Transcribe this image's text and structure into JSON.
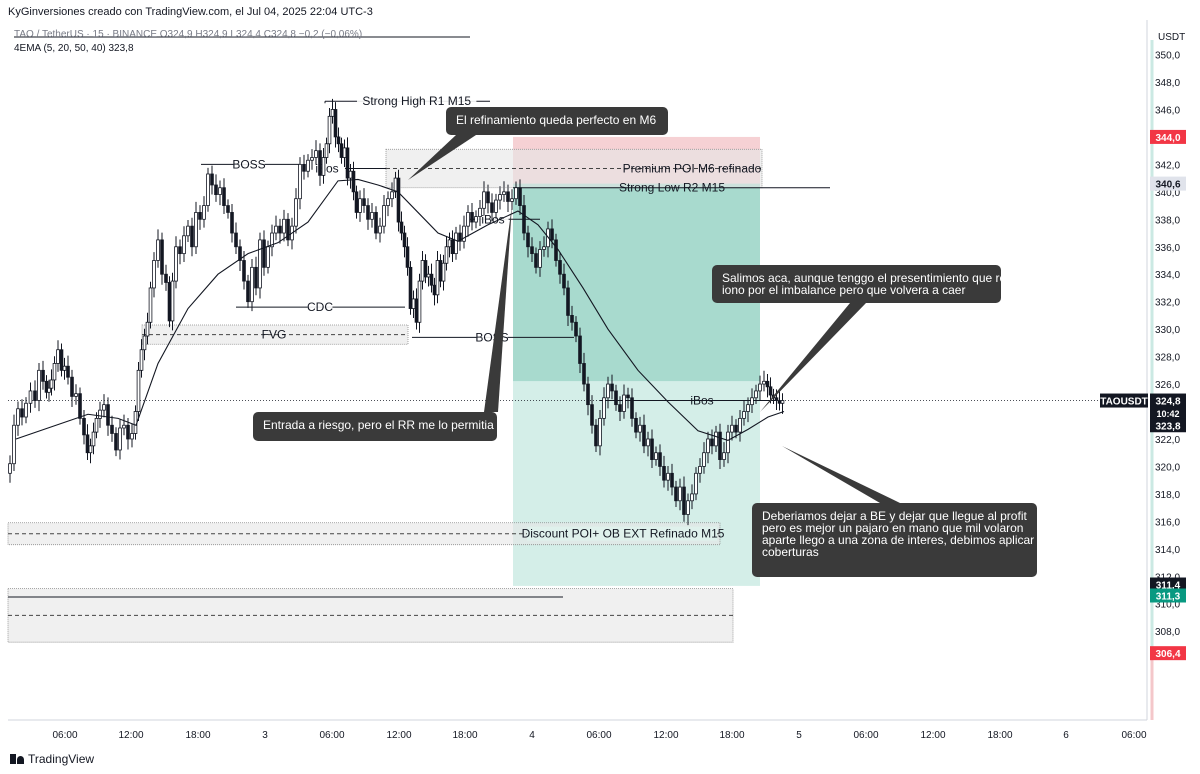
{
  "header": {
    "attribution": "KyGinversiones creado con TradingView.com, el Jul 04, 2025 22:04 UTC-3",
    "symbol_line": "TAO / TetherUS · 15 · BINANCE  O324,9  H324,9  L324,4  C324,8  −0,2 (−0,06%)",
    "indicator_line": "4EMA (5, 20, 50, 40)  323,8"
  },
  "footer": {
    "brand": "TradingView"
  },
  "colors": {
    "candle": "#131722",
    "ema": "#131722",
    "premium_zone": "#f5c9cc",
    "profit_zone_dark": "#9ed6c9",
    "profit_zone_light": "#d2ede7",
    "gray_zone": "#e6e6e6",
    "callout_bg": "#3a3a3a",
    "tag_red": "#f23645",
    "tag_green": "#089981"
  },
  "chart_data": {
    "type": "candlestick",
    "symbol": "TAOUSDT",
    "quote": "USDT",
    "interval": "15",
    "y_range": [
      306,
      350.5
    ],
    "y_ticks": [
      "350,0",
      "348,0",
      "346,0",
      "344,0",
      "342,0",
      "340,0",
      "338,0",
      "336,0",
      "334,0",
      "332,0",
      "330,0",
      "328,0",
      "326,0",
      "324,0",
      "322,0",
      "320,0",
      "318,0",
      "316,0",
      "314,0",
      "312,0",
      "310,0",
      "308,0"
    ],
    "x_ticks": [
      "06:00",
      "12:00",
      "18:00",
      "3",
      "06:00",
      "12:00",
      "18:00",
      "4",
      "06:00",
      "12:00",
      "18:00",
      "5",
      "06:00",
      "12:00",
      "18:00",
      "6",
      "06:00"
    ],
    "price_path": [
      [
        0,
        319.5
      ],
      [
        4,
        320.2
      ],
      [
        8,
        323.0
      ],
      [
        12,
        324.2
      ],
      [
        16,
        323.6
      ],
      [
        20,
        324.6
      ],
      [
        25,
        325.5
      ],
      [
        29,
        324.8
      ],
      [
        33,
        327.0
      ],
      [
        37,
        326.2
      ],
      [
        40,
        325.4
      ],
      [
        42,
        325.7
      ],
      [
        45,
        326.3
      ],
      [
        48,
        327.5
      ],
      [
        52,
        328.5
      ],
      [
        55,
        327.0
      ],
      [
        58,
        327.3
      ],
      [
        62,
        326.5
      ],
      [
        66,
        325.1
      ],
      [
        70,
        325.3
      ],
      [
        74,
        323.5
      ],
      [
        78,
        322.3
      ],
      [
        81,
        321.0
      ],
      [
        84,
        321.5
      ],
      [
        87,
        322.5
      ],
      [
        90,
        323.5
      ],
      [
        94,
        324.1
      ],
      [
        98,
        324.5
      ],
      [
        102,
        323.0
      ],
      [
        106,
        322.4
      ],
      [
        110,
        321.2
      ],
      [
        114,
        322.8
      ],
      [
        118,
        323.0
      ],
      [
        122,
        322.0
      ],
      [
        126,
        322.4
      ],
      [
        129,
        324.0
      ],
      [
        132,
        327.0
      ],
      [
        135,
        328.5
      ],
      [
        138,
        329.5
      ],
      [
        141,
        330.5
      ],
      [
        144,
        333.0
      ],
      [
        148,
        335.0
      ],
      [
        152,
        336.5
      ],
      [
        156,
        334.0
      ],
      [
        160,
        333.4
      ],
      [
        163,
        330.6
      ],
      [
        166,
        333.5
      ],
      [
        170,
        336.0
      ],
      [
        174,
        335.5
      ],
      [
        178,
        336.8
      ],
      [
        182,
        337.5
      ],
      [
        186,
        336.0
      ],
      [
        190,
        338.5
      ],
      [
        194,
        338.0
      ],
      [
        198,
        339.0
      ],
      [
        202,
        341.3
      ],
      [
        206,
        340.5
      ],
      [
        210,
        339.8
      ],
      [
        214,
        340.3
      ],
      [
        218,
        339.0
      ],
      [
        222,
        338.5
      ],
      [
        226,
        337.0
      ],
      [
        230,
        336.0
      ],
      [
        234,
        335.0
      ],
      [
        238,
        333.5
      ],
      [
        242,
        332.0
      ],
      [
        246,
        334.5
      ],
      [
        250,
        333.0
      ],
      [
        254,
        336.5
      ],
      [
        258,
        334.5
      ],
      [
        262,
        336.0
      ],
      [
        266,
        337.0
      ],
      [
        270,
        337.5
      ],
      [
        274,
        337.0
      ],
      [
        278,
        338.0
      ],
      [
        282,
        336.5
      ],
      [
        286,
        337.5
      ],
      [
        290,
        339.5
      ],
      [
        294,
        342.0
      ],
      [
        298,
        341.5
      ],
      [
        302,
        342.3
      ],
      [
        306,
        342.5
      ],
      [
        310,
        343.0
      ],
      [
        314,
        341.2
      ],
      [
        317,
        342.5
      ],
      [
        320,
        343.5
      ],
      [
        323,
        345.5
      ],
      [
        326,
        346.0
      ],
      [
        329,
        344.0
      ],
      [
        332,
        343.5
      ],
      [
        335,
        342.5
      ],
      [
        338,
        343.2
      ],
      [
        341,
        341.0
      ],
      [
        344,
        341.5
      ],
      [
        347,
        340.0
      ],
      [
        350,
        338.5
      ],
      [
        354,
        339.5
      ],
      [
        358,
        339.0
      ],
      [
        362,
        338.0
      ],
      [
        366,
        338.5
      ],
      [
        370,
        337.0
      ],
      [
        374,
        337.5
      ],
      [
        378,
        339.0
      ],
      [
        382,
        339.5
      ],
      [
        386,
        340.0
      ],
      [
        389,
        341.0
      ],
      [
        392,
        337.8
      ],
      [
        395,
        337.0
      ],
      [
        398,
        336.0
      ],
      [
        401,
        334.5
      ],
      [
        404,
        331.5
      ],
      [
        407,
        332.2
      ],
      [
        410,
        330.5
      ],
      [
        413,
        333.5
      ],
      [
        416,
        335.0
      ],
      [
        419,
        333.8
      ],
      [
        422,
        334.0
      ],
      [
        425,
        333.2
      ],
      [
        428,
        332.5
      ],
      [
        431,
        335.0
      ],
      [
        434,
        333.5
      ],
      [
        437,
        334.8
      ],
      [
        440,
        336.0
      ],
      [
        443,
        336.5
      ],
      [
        446,
        335.5
      ],
      [
        450,
        337.0
      ],
      [
        454,
        336.4
      ],
      [
        458,
        337.5
      ],
      [
        462,
        338.5
      ],
      [
        466,
        337.8
      ],
      [
        470,
        338.2
      ],
      [
        474,
        338.8
      ],
      [
        478,
        340.0
      ],
      [
        482,
        339.2
      ],
      [
        486,
        338.5
      ],
      [
        490,
        339.4
      ],
      [
        494,
        339.8
      ],
      [
        498,
        340.0
      ],
      [
        502,
        339.3
      ],
      [
        506,
        339.5
      ],
      [
        510,
        340.3
      ],
      [
        514,
        339.0
      ],
      [
        518,
        337.0
      ],
      [
        522,
        336.0
      ],
      [
        526,
        335.5
      ],
      [
        530,
        334.5
      ],
      [
        534,
        335.8
      ],
      [
        538,
        336.0
      ],
      [
        542,
        337.3
      ],
      [
        546,
        336.5
      ],
      [
        550,
        335.0
      ],
      [
        554,
        334.0
      ],
      [
        558,
        333.0
      ],
      [
        562,
        331.0
      ],
      [
        566,
        330.5
      ],
      [
        570,
        329.5
      ],
      [
        574,
        327.5
      ],
      [
        578,
        326.0
      ],
      [
        582,
        324.5
      ],
      [
        586,
        323.0
      ],
      [
        590,
        321.5
      ],
      [
        594,
        323.5
      ],
      [
        598,
        325.0
      ],
      [
        602,
        326.0
      ],
      [
        606,
        325.5
      ],
      [
        610,
        324.5
      ],
      [
        614,
        324.0
      ],
      [
        618,
        325.2
      ],
      [
        622,
        325.0
      ],
      [
        626,
        323.5
      ],
      [
        630,
        322.5
      ],
      [
        634,
        323.0
      ],
      [
        638,
        321.5
      ],
      [
        642,
        322.0
      ],
      [
        646,
        320.5
      ],
      [
        650,
        321.0
      ],
      [
        654,
        320.0
      ],
      [
        658,
        319.0
      ],
      [
        662,
        319.5
      ],
      [
        666,
        318.5
      ],
      [
        670,
        317.5
      ],
      [
        674,
        318.5
      ],
      [
        678,
        316.5
      ],
      [
        682,
        317.5
      ],
      [
        686,
        318.0
      ],
      [
        690,
        319.5
      ],
      [
        694,
        320.0
      ],
      [
        698,
        321.0
      ],
      [
        702,
        322.0
      ],
      [
        706,
        321.5
      ],
      [
        710,
        322.5
      ],
      [
        714,
        320.5
      ],
      [
        718,
        321.0
      ],
      [
        722,
        322.5
      ],
      [
        726,
        323.0
      ],
      [
        730,
        322.5
      ],
      [
        734,
        323.5
      ],
      [
        738,
        324.0
      ],
      [
        742,
        324.5
      ],
      [
        746,
        325.0
      ],
      [
        750,
        325.5
      ],
      [
        754,
        326.0
      ],
      [
        758,
        326.2
      ],
      [
        761,
        325.8
      ],
      [
        764,
        325.2
      ],
      [
        767,
        325.0
      ],
      [
        770,
        324.8
      ],
      [
        773,
        324.6
      ],
      [
        776,
        324.8
      ]
    ],
    "ema_path": [
      [
        8,
        322.0
      ],
      [
        40,
        322.8
      ],
      [
        80,
        323.8
      ],
      [
        110,
        323.5
      ],
      [
        128,
        323.0
      ],
      [
        150,
        327.5
      ],
      [
        180,
        331.5
      ],
      [
        210,
        334.0
      ],
      [
        240,
        335.5
      ],
      [
        270,
        336.3
      ],
      [
        300,
        337.8
      ],
      [
        330,
        340.8
      ],
      [
        350,
        340.9
      ],
      [
        370,
        340.5
      ],
      [
        390,
        340.0
      ],
      [
        410,
        338.5
      ],
      [
        430,
        337.0
      ],
      [
        450,
        336.4
      ],
      [
        480,
        337.6
      ],
      [
        510,
        338.6
      ],
      [
        530,
        337.6
      ],
      [
        550,
        335.8
      ],
      [
        575,
        333.0
      ],
      [
        600,
        330.0
      ],
      [
        630,
        327.0
      ],
      [
        660,
        324.7
      ],
      [
        690,
        322.6
      ],
      [
        720,
        321.9
      ],
      [
        740,
        322.7
      ],
      [
        760,
        323.6
      ],
      [
        776,
        324.0
      ]
    ],
    "zones": [
      {
        "name": "Premium POI M6 refinado",
        "top": 343.1,
        "bottom": 340.3
      },
      {
        "name": "FVG",
        "top": 330.3,
        "bottom": 328.9
      },
      {
        "name": "Discount POI+ OB EXT Refinado M15",
        "top": 315.9,
        "bottom": 314.3
      },
      {
        "name": "lower-zone",
        "top": 311.1,
        "bottom": 307.2
      }
    ],
    "position": {
      "stop": 344.0,
      "entry": 340.6,
      "take_profit_mid": 326.2,
      "target": 311.3
    },
    "levels": [
      {
        "label": "Strong High R1 M15",
        "price": 346.6
      },
      {
        "label": "Strong Low R2 M15",
        "price": 340.3
      },
      {
        "label": "BOSS",
        "price": 342.0
      },
      {
        "label": "CDC",
        "price": 331.6
      },
      {
        "label": "BOSS",
        "price": 329.4
      },
      {
        "label": "iBos",
        "price": 341.7
      },
      {
        "label": "iBos",
        "price": 338.0
      },
      {
        "label": "iBos",
        "price": 324.8
      }
    ],
    "price_tags": [
      {
        "label": "344,0",
        "price": 344.0,
        "kind": "red"
      },
      {
        "label": "340,6",
        "price": 340.6,
        "kind": "gray"
      },
      {
        "label": "324,8",
        "price": 324.8,
        "kind": "dark"
      },
      {
        "label": "10:42",
        "price": 323.9,
        "kind": "dark_small"
      },
      {
        "label": "323,8",
        "price": 323.0,
        "kind": "dark"
      },
      {
        "label": "311,4",
        "price": 311.4,
        "kind": "dark"
      },
      {
        "label": "311,3",
        "price": 310.6,
        "kind": "green"
      },
      {
        "label": "306,4",
        "price": 306.4,
        "kind": "red"
      }
    ],
    "symbol_tag": "TAOUSDT",
    "callouts": [
      "El refinamiento queda perfecto en M6",
      "Salimos aca, aunque tenggo el presentimiento que reacciono por el imbalance pero que volvera a caer",
      "Entrada a riesgo, pero el RR me lo permitia",
      "Deberiamos dejar a BE y dejar que llegue al profit pero es mejor un pajaro en mano que mil volaron aparte llego a una zona de interes, debimos aplicar coberturas"
    ]
  }
}
